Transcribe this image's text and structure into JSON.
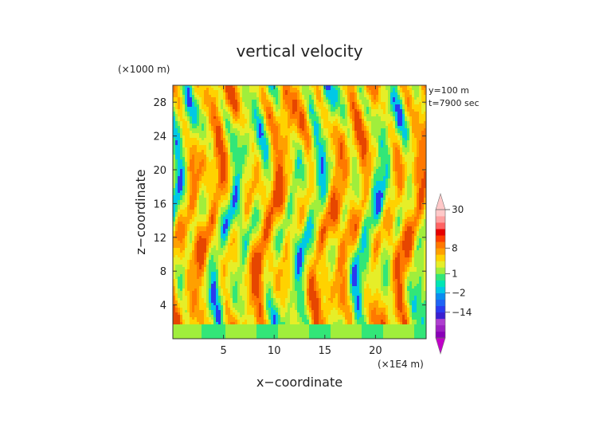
{
  "chart_data": {
    "type": "heatmap",
    "title": "vertical velocity",
    "xlabel": "x−coordinate",
    "ylabel": "z−coordinate",
    "x_unit": "(×1E4 m)",
    "y_unit": "(×1000 m)",
    "annotations": [
      "y=100  m",
      "t=7900 sec"
    ],
    "xlim": [
      0,
      25
    ],
    "ylim": [
      0,
      30
    ],
    "xticks": [
      5,
      10,
      15,
      20
    ],
    "yticks": [
      4,
      8,
      12,
      16,
      20,
      24,
      28
    ],
    "colorbar": {
      "labels": [
        {
          "text": "30",
          "value": 30
        },
        {
          "text": "8",
          "value": 8
        },
        {
          "text": "1",
          "value": 1
        },
        {
          "text": "−2",
          "value": -2
        },
        {
          "text": "−14",
          "value": -14
        }
      ],
      "levels": [
        -30,
        -26,
        -22,
        -18,
        -14,
        -10,
        -6,
        -2,
        -1,
        0,
        1,
        2,
        4,
        6,
        8,
        10,
        14,
        18,
        22,
        26,
        30
      ],
      "colors": [
        "#8a00b8",
        "#9c1fc2",
        "#ae3ecf",
        "#3a1fd0",
        "#2a3af0",
        "#1e64f5",
        "#0a8cf0",
        "#00c8e6",
        "#00e6b4",
        "#32e678",
        "#a0ee3c",
        "#e6ee28",
        "#ffd200",
        "#ffa000",
        "#ff7800",
        "#ff3c00",
        "#e60000",
        "#ff6464",
        "#ffa0a0",
        "#ffc8c8"
      ]
    },
    "field_palette": [
      "#2a3af0",
      "#00c8e6",
      "#32e678",
      "#a0ee3c",
      "#e6ee28",
      "#ffd200",
      "#ffa000",
      "#ff7800",
      "#e64600"
    ]
  }
}
